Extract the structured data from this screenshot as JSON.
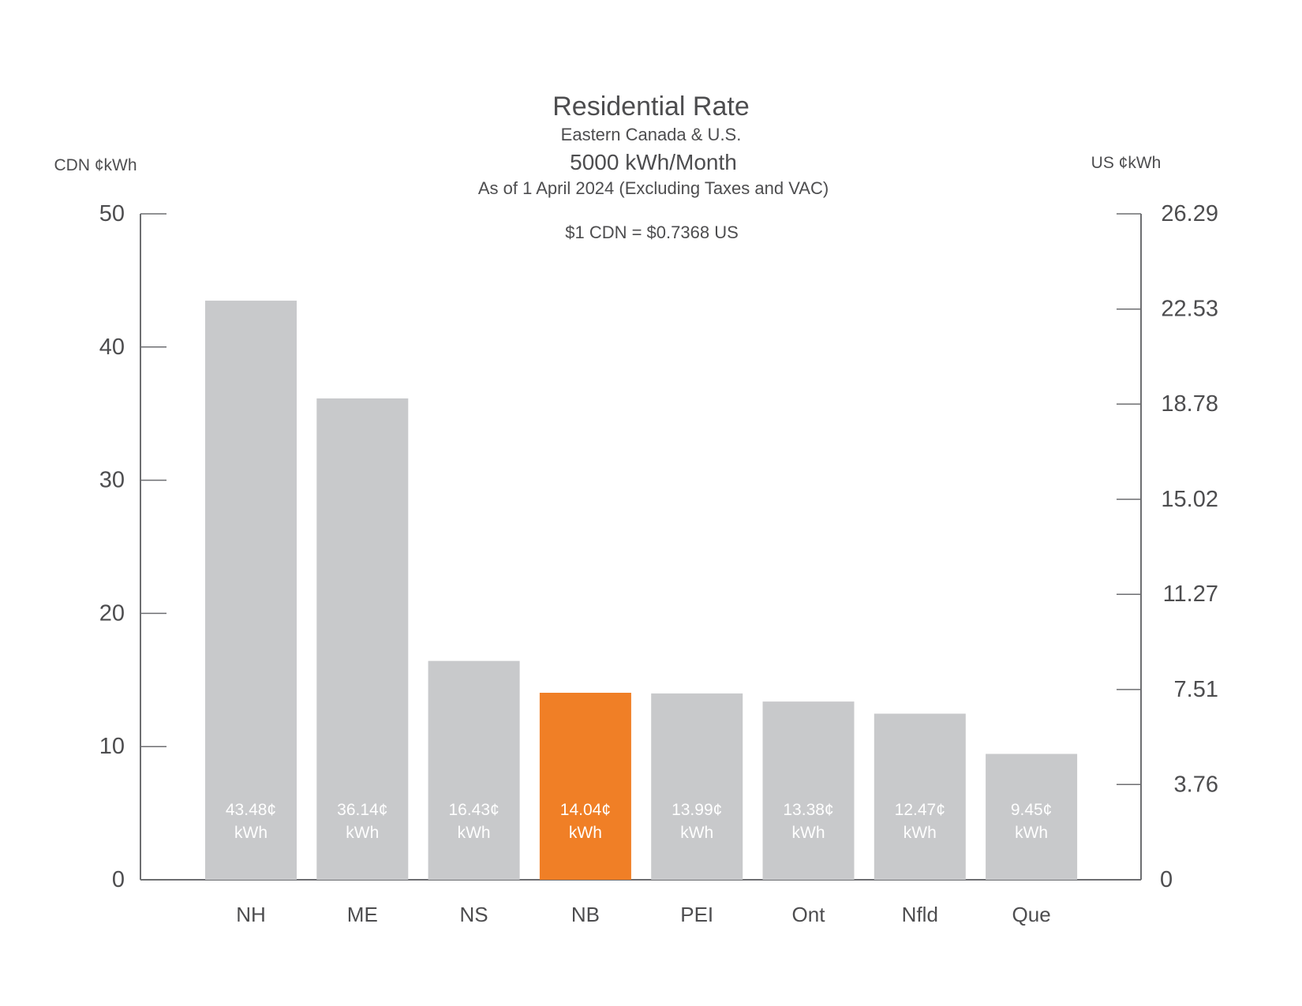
{
  "chart_data": {
    "type": "bar",
    "title": "Residential Rate",
    "subtitle": "Eastern Canada & U.S.",
    "volume": "5000 kWh/Month",
    "as_of": "As of 1 April 2024 (Excluding Taxes and VAC)",
    "exchange_note": "$1 CDN = $0.7368 US",
    "ylabel_left": "CDN ¢kWh",
    "ylabel_right": "US ¢kWh",
    "ylim": [
      0,
      50
    ],
    "left_ticks": [
      "0",
      "10",
      "20",
      "30",
      "40",
      "50"
    ],
    "left_tick_values": [
      0,
      10,
      20,
      30,
      40,
      50
    ],
    "right_ticks": [
      "0",
      "3.76",
      "7.51",
      "11.27",
      "15.02",
      "18.78",
      "22.53",
      "26.29"
    ],
    "right_tick_values": [
      0,
      3.76,
      7.51,
      11.27,
      15.02,
      18.78,
      22.53,
      26.29
    ],
    "right_ylim": [
      0,
      26.29
    ],
    "categories": [
      "NH",
      "ME",
      "NS",
      "NB",
      "PEI",
      "Ont",
      "Nfld",
      "Que"
    ],
    "values": [
      43.48,
      36.14,
      16.43,
      14.04,
      13.99,
      13.38,
      12.47,
      9.45
    ],
    "bar_labels": [
      "43.48¢",
      "36.14¢",
      "16.43¢",
      "14.04¢",
      "13.99¢",
      "13.38¢",
      "12.47¢",
      "9.45¢"
    ],
    "unit_label": "kWh",
    "highlight_category": "NB",
    "colors": {
      "bar": "#c8c9cb",
      "highlight": "#f07f26",
      "axis": "#6d6e71"
    }
  }
}
